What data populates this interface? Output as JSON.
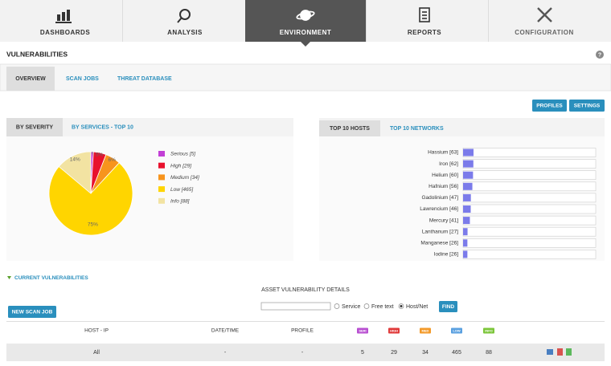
{
  "nav": {
    "tabs": [
      "DASHBOARDS",
      "ANALYSIS",
      "ENVIRONMENT",
      "REPORTS",
      "CONFIGURATION"
    ]
  },
  "page": {
    "title": "VULNERABILITIES",
    "help": "?",
    "tabs": [
      "OVERVIEW",
      "SCAN JOBS",
      "THREAT DATABASE"
    ],
    "buttons": [
      "PROFILES",
      "SETTINGS"
    ]
  },
  "severity_panel": {
    "tabs": [
      "BY SEVERITY",
      "BY SERVICES - TOP 10"
    ]
  },
  "hosts_panel": {
    "tabs": [
      "TOP 10 HOSTS",
      "TOP 10 NETWORKS"
    ]
  },
  "chart_data": [
    {
      "type": "pie",
      "categories": [
        "Serious [5]",
        "High [29]",
        "Medium [34]",
        "Low [465]",
        "Info [88]"
      ],
      "values": [
        1,
        5,
        6,
        75,
        14
      ],
      "value_labels": [
        "1%",
        "5%",
        "6%",
        "75%",
        "14%"
      ],
      "colors": [
        "#c23fd6",
        "#e8112d",
        "#f7941d",
        "#ffd500",
        "#f2e3a2"
      ]
    },
    {
      "type": "bar",
      "orientation": "horizontal",
      "categories": [
        "Hassium [63]",
        "Iron [62]",
        "Helium [60]",
        "Hafnium [56]",
        "Gadolinium [47]",
        "Lawrencium [46]",
        "Mercury [41]",
        "Lanthanum [27]",
        "Manganese [26]",
        "Iodine [26]"
      ],
      "values": [
        63,
        62,
        60,
        56,
        47,
        46,
        41,
        27,
        26,
        26
      ],
      "color": "#7b7bea",
      "xlim": [
        0,
        800
      ]
    }
  ],
  "vulnerabilities": {
    "toggle": "CURRENT VULNERABILITIES",
    "heading": "ASSET VULNERABILITY DETAILS",
    "search_options": [
      "Service",
      "Free text",
      "Host/Net"
    ],
    "find": "FIND",
    "new_scan_job": "NEW SCAN JOB",
    "table": {
      "columns": [
        "HOST - IP",
        "DATE/TIME",
        "PROFILE",
        "SERI",
        "HIGH",
        "MED",
        "LOW",
        "INFO"
      ],
      "rows": [
        [
          "All",
          "-",
          "-",
          5,
          29,
          34,
          465,
          88
        ]
      ]
    }
  }
}
